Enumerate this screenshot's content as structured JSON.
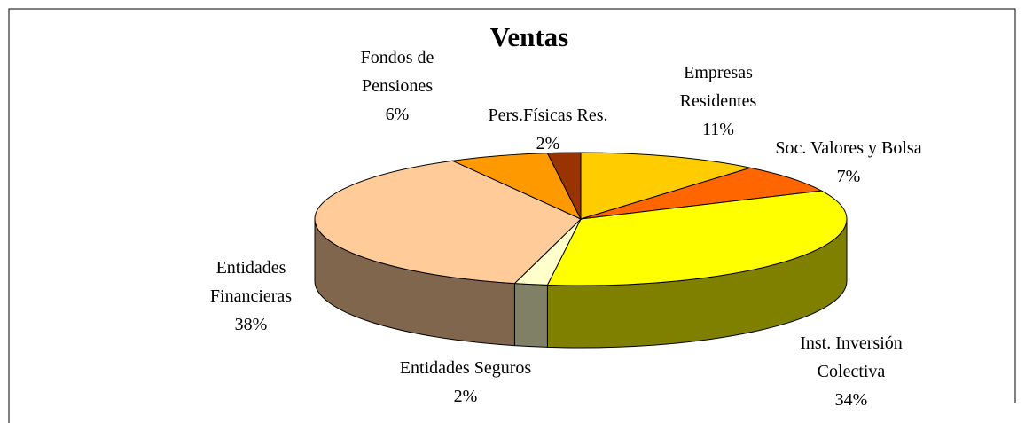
{
  "chart_data": {
    "type": "pie3d",
    "title": "Ventas",
    "categories": [
      "Empresas Residentes",
      "Soc. Valores y Bolsa",
      "Inst. Inversión Colectiva",
      "Entidades Seguros",
      "Entidades Financieras",
      "Fondos de Pensiones",
      "Pers.Físicas Res."
    ],
    "values": [
      11,
      7,
      34,
      2,
      38,
      6,
      2
    ],
    "value_labels": [
      "11%",
      "7%",
      "34%",
      "2%",
      "38%",
      "6%",
      "2%"
    ],
    "colors": [
      "#ffcc00",
      "#ff6600",
      "#ffff00",
      "#ffffcc",
      "#ffcc99",
      "#ff9900",
      "#993300"
    ]
  }
}
